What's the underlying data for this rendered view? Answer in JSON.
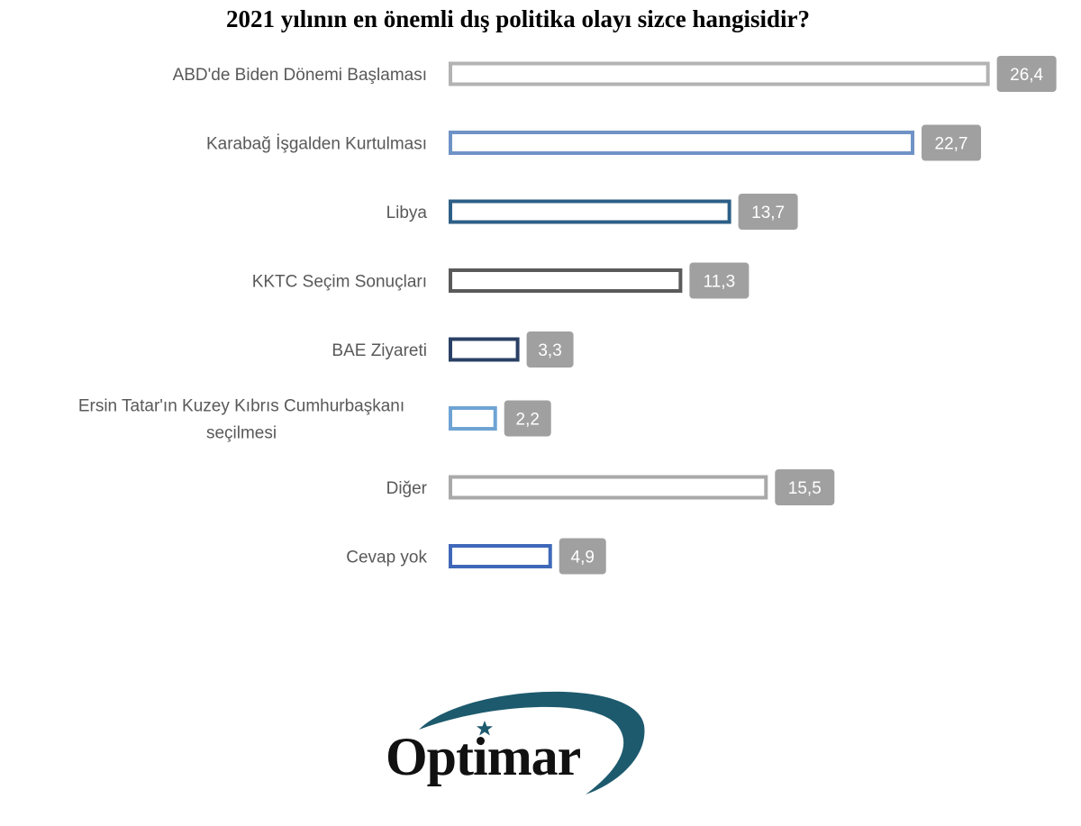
{
  "chart_data": {
    "type": "bar",
    "orientation": "horizontal",
    "title": "2021 yılının en önemli dış politika olayı sizce hangisidir?",
    "categories": [
      [
        "ABD'de Biden Dönemi Başlaması"
      ],
      [
        "Karabağ İşgalden Kurtulması"
      ],
      [
        "Libya"
      ],
      [
        "KKTC Seçim Sonuçları"
      ],
      [
        "BAE Ziyareti"
      ],
      [
        "Ersin Tatar'ın Kuzey Kıbrıs Cumhurbaşkanı",
        "seçilmesi"
      ],
      [
        "Diğer"
      ],
      [
        "Cevap yok"
      ]
    ],
    "values": [
      26.4,
      22.7,
      13.7,
      11.3,
      3.3,
      2.2,
      15.5,
      4.9
    ],
    "value_labels": [
      "26,4",
      "22,7",
      "13,7",
      "11,3",
      "3,3",
      "2,2",
      "15,5",
      "4,9"
    ],
    "bar_colors": [
      "#b3b3b3",
      "#6f93c6",
      "#2d5f86",
      "#5a5a5a",
      "#2a4066",
      "#6ea3d4",
      "#a9a9a9",
      "#3f68b8"
    ],
    "data_label_color": "#a0a0a0",
    "xlabel": "",
    "ylabel": "",
    "grid": false,
    "legend": "none"
  },
  "logo": {
    "text": "Optimar",
    "swoosh_color": "#1d5a6e",
    "star_color": "#1d5a6e"
  }
}
